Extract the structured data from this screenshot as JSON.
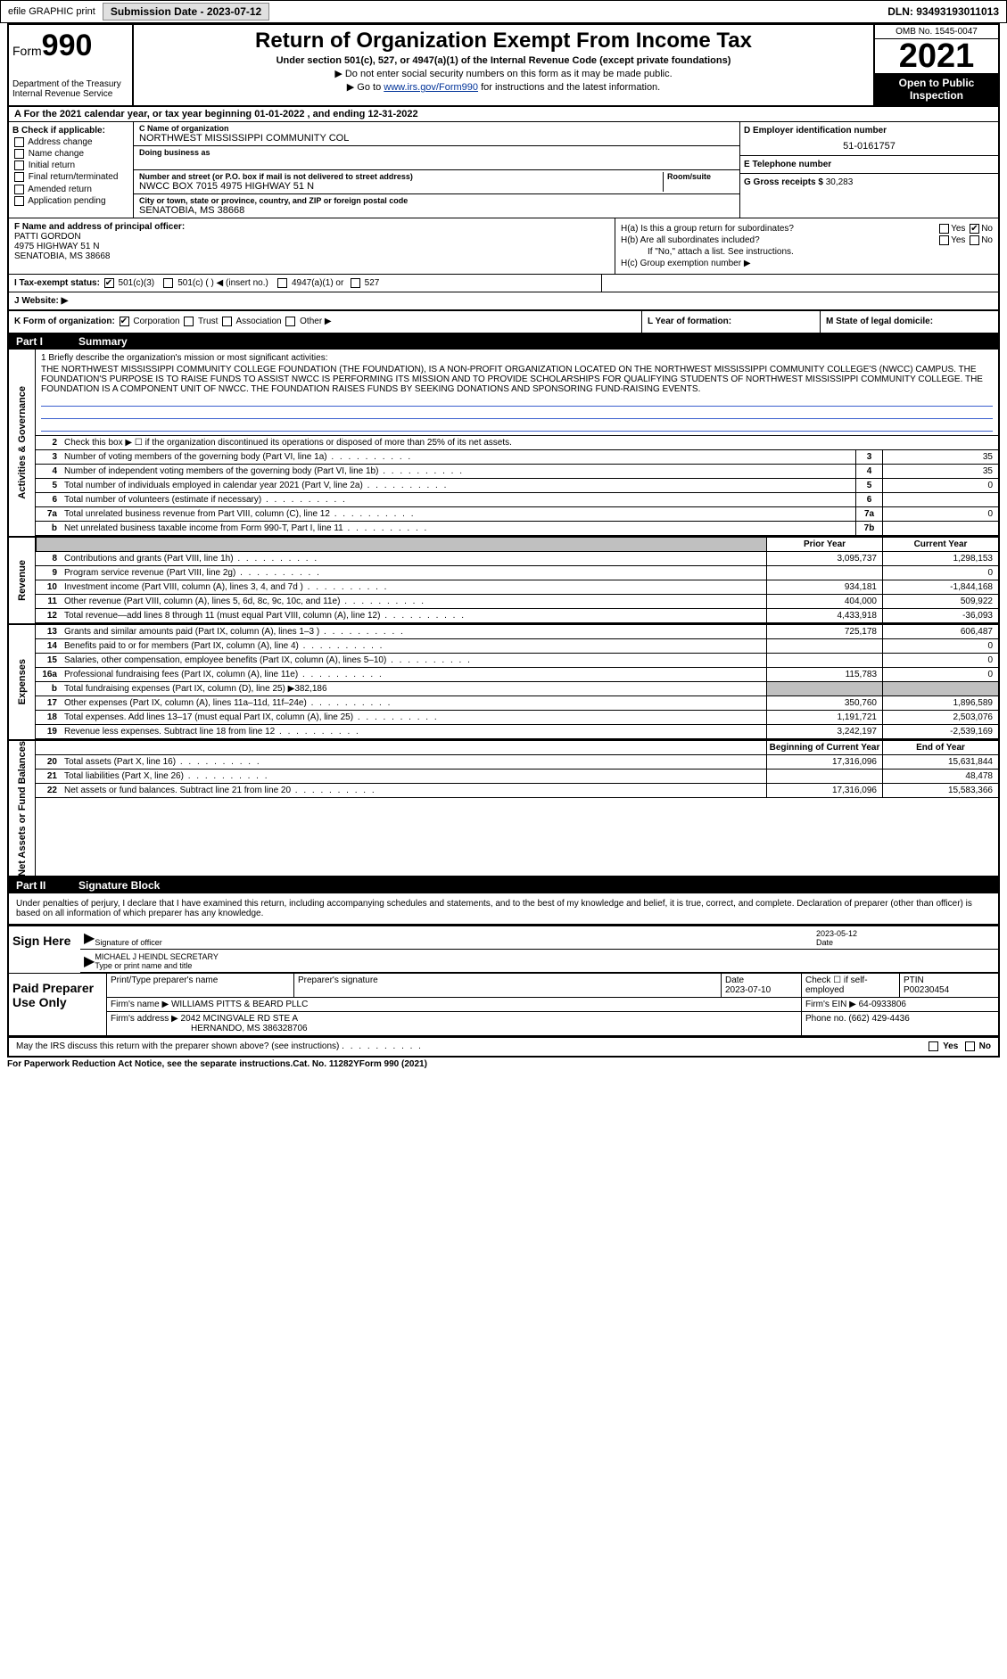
{
  "top": {
    "efile": "efile GRAPHIC print",
    "submission_label": "Submission Date - 2023-07-12",
    "dln": "DLN: 93493193011013"
  },
  "header": {
    "form_prefix": "Form",
    "form_number": "990",
    "dept": "Department of the Treasury Internal Revenue Service",
    "title": "Return of Organization Exempt From Income Tax",
    "sub1": "Under section 501(c), 527, or 4947(a)(1) of the Internal Revenue Code (except private foundations)",
    "sub2": "▶ Do not enter social security numbers on this form as it may be made public.",
    "sub3_pre": "▶ Go to ",
    "sub3_link": "www.irs.gov/Form990",
    "sub3_post": " for instructions and the latest information.",
    "omb": "OMB No. 1545-0047",
    "year": "2021",
    "open_public": "Open to Public Inspection"
  },
  "a_line": "A For the 2021 calendar year, or tax year beginning 01-01-2022   , and ending 12-31-2022",
  "b": {
    "title": "B Check if applicable:",
    "opts": [
      "Address change",
      "Name change",
      "Initial return",
      "Final return/terminated",
      "Amended return",
      "Application pending"
    ]
  },
  "c": {
    "name_lbl": "C Name of organization",
    "name": "NORTHWEST MISSISSIPPI COMMUNITY COL",
    "dba_lbl": "Doing business as",
    "addr_lbl": "Number and street (or P.O. box if mail is not delivered to street address)",
    "room_lbl": "Room/suite",
    "addr": "NWCC BOX 7015 4975 HIGHWAY 51 N",
    "city_lbl": "City or town, state or province, country, and ZIP or foreign postal code",
    "city": "SENATOBIA, MS  38668"
  },
  "d": {
    "lbl": "D Employer identification number",
    "val": "51-0161757"
  },
  "e": {
    "lbl": "E Telephone number"
  },
  "g": {
    "lbl": "G Gross receipts $",
    "val": "30,283"
  },
  "f": {
    "lbl": "F  Name and address of principal officer:",
    "name": "PATTI GORDON",
    "addr1": "4975 HIGHWAY 51 N",
    "addr2": "SENATOBIA, MS  38668"
  },
  "h": {
    "a": "H(a)  Is this a group return for subordinates?",
    "b": "H(b)  Are all subordinates included?",
    "b2": "If \"No,\" attach a list. See instructions.",
    "c": "H(c)  Group exemption number ▶",
    "yes": "Yes",
    "no": "No"
  },
  "i": {
    "lbl": "I   Tax-exempt status:",
    "o1": "501(c)(3)",
    "o2": "501(c) (  ) ◀ (insert no.)",
    "o3": "4947(a)(1) or",
    "o4": "527"
  },
  "j": {
    "lbl": "J   Website: ▶"
  },
  "k": {
    "lbl": "K Form of organization:",
    "o1": "Corporation",
    "o2": "Trust",
    "o3": "Association",
    "o4": "Other ▶"
  },
  "l": {
    "lbl": "L Year of formation:"
  },
  "m": {
    "lbl": "M State of legal domicile:"
  },
  "part1": {
    "num": "Part I",
    "title": "Summary"
  },
  "mission": {
    "q": "1   Briefly describe the organization's mission or most significant activities:",
    "txt": "THE NORTHWEST MISSISSIPPI COMMUNITY COLLEGE FOUNDATION (THE FOUNDATION), IS A NON-PROFIT ORGANIZATION LOCATED ON THE NORTHWEST MISSISSIPPI COMMUNITY COLLEGE'S (NWCC) CAMPUS. THE FOUNDATION'S PURPOSE IS TO RAISE FUNDS TO ASSIST NWCC IS PERFORMING ITS MISSION AND TO PROVIDE SCHOLARSHIPS FOR QUALIFYING STUDENTS OF NORTHWEST MISSISSIPPI COMMUNITY COLLEGE. THE FOUNDATION IS A COMPONENT UNIT OF NWCC. THE FOUNDATION RAISES FUNDS BY SEEKING DONATIONS AND SPONSORING FUND-RAISING EVENTS."
  },
  "vlabels": {
    "ag": "Activities & Governance",
    "rev": "Revenue",
    "exp": "Expenses",
    "nab": "Net Assets or Fund Balances"
  },
  "lines_ag": [
    {
      "n": "2",
      "d": "Check this box ▶ ☐ if the organization discontinued its operations or disposed of more than 25% of its net assets.",
      "full": true
    },
    {
      "n": "3",
      "d": "Number of voting members of the governing body (Part VI, line 1a)",
      "box": "3",
      "v": "35"
    },
    {
      "n": "4",
      "d": "Number of independent voting members of the governing body (Part VI, line 1b)",
      "box": "4",
      "v": "35"
    },
    {
      "n": "5",
      "d": "Total number of individuals employed in calendar year 2021 (Part V, line 2a)",
      "box": "5",
      "v": "0"
    },
    {
      "n": "6",
      "d": "Total number of volunteers (estimate if necessary)",
      "box": "6",
      "v": ""
    },
    {
      "n": "7a",
      "d": "Total unrelated business revenue from Part VIII, column (C), line 12",
      "box": "7a",
      "v": "0"
    },
    {
      "n": "b",
      "d": "Net unrelated business taxable income from Form 990-T, Part I, line 11",
      "box": "7b",
      "v": ""
    }
  ],
  "col_hdrs": {
    "prior": "Prior Year",
    "current": "Current Year"
  },
  "lines_rev": [
    {
      "n": "8",
      "d": "Contributions and grants (Part VIII, line 1h)",
      "p": "3,095,737",
      "c": "1,298,153"
    },
    {
      "n": "9",
      "d": "Program service revenue (Part VIII, line 2g)",
      "p": "",
      "c": "0"
    },
    {
      "n": "10",
      "d": "Investment income (Part VIII, column (A), lines 3, 4, and 7d )",
      "p": "934,181",
      "c": "-1,844,168"
    },
    {
      "n": "11",
      "d": "Other revenue (Part VIII, column (A), lines 5, 6d, 8c, 9c, 10c, and 11e)",
      "p": "404,000",
      "c": "509,922"
    },
    {
      "n": "12",
      "d": "Total revenue—add lines 8 through 11 (must equal Part VIII, column (A), line 12)",
      "p": "4,433,918",
      "c": "-36,093"
    }
  ],
  "lines_exp": [
    {
      "n": "13",
      "d": "Grants and similar amounts paid (Part IX, column (A), lines 1–3 )",
      "p": "725,178",
      "c": "606,487"
    },
    {
      "n": "14",
      "d": "Benefits paid to or for members (Part IX, column (A), line 4)",
      "p": "",
      "c": "0"
    },
    {
      "n": "15",
      "d": "Salaries, other compensation, employee benefits (Part IX, column (A), lines 5–10)",
      "p": "",
      "c": "0"
    },
    {
      "n": "16a",
      "d": "Professional fundraising fees (Part IX, column (A), line 11e)",
      "p": "115,783",
      "c": "0"
    },
    {
      "n": "b",
      "d": "Total fundraising expenses (Part IX, column (D), line 25) ▶382,186",
      "grey": true
    },
    {
      "n": "17",
      "d": "Other expenses (Part IX, column (A), lines 11a–11d, 11f–24e)",
      "p": "350,760",
      "c": "1,896,589"
    },
    {
      "n": "18",
      "d": "Total expenses. Add lines 13–17 (must equal Part IX, column (A), line 25)",
      "p": "1,191,721",
      "c": "2,503,076"
    },
    {
      "n": "19",
      "d": "Revenue less expenses. Subtract line 18 from line 12",
      "p": "3,242,197",
      "c": "-2,539,169"
    }
  ],
  "col_hdrs2": {
    "prior": "Beginning of Current Year",
    "current": "End of Year"
  },
  "lines_nab": [
    {
      "n": "20",
      "d": "Total assets (Part X, line 16)",
      "p": "17,316,096",
      "c": "15,631,844"
    },
    {
      "n": "21",
      "d": "Total liabilities (Part X, line 26)",
      "p": "",
      "c": "48,478"
    },
    {
      "n": "22",
      "d": "Net assets or fund balances. Subtract line 21 from line 20",
      "p": "17,316,096",
      "c": "15,583,366"
    }
  ],
  "part2": {
    "num": "Part II",
    "title": "Signature Block"
  },
  "sig_decl": "Under penalties of perjury, I declare that I have examined this return, including accompanying schedules and statements, and to the best of my knowledge and belief, it is true, correct, and complete. Declaration of preparer (other than officer) is based on all information of which preparer has any knowledge.",
  "sign": {
    "here": "Sign Here",
    "sig_lbl": "Signature of officer",
    "date_lbl": "Date",
    "date": "2023-05-12",
    "name": "MICHAEL J HEINDL  SECRETARY",
    "name_lbl": "Type or print name and title"
  },
  "prep": {
    "title": "Paid Preparer Use Only",
    "h1": "Print/Type preparer's name",
    "h2": "Preparer's signature",
    "h3": "Date",
    "h4": "Check ☐ if self-employed",
    "h5": "PTIN",
    "date": "2023-07-10",
    "ptin": "P00230454",
    "firm_lbl": "Firm's name    ▶",
    "firm": "WILLIAMS PITTS & BEARD PLLC",
    "ein_lbl": "Firm's EIN ▶",
    "ein": "64-0933806",
    "addr_lbl": "Firm's address ▶",
    "addr1": "2042 MCINGVALE RD STE A",
    "addr2": "HERNANDO, MS  386328706",
    "phone_lbl": "Phone no.",
    "phone": "(662) 429-4436"
  },
  "footer": {
    "discuss": "May the IRS discuss this return with the preparer shown above? (see instructions)",
    "yes": "Yes",
    "no": "No",
    "pra": "For Paperwork Reduction Act Notice, see the separate instructions.",
    "cat": "Cat. No. 11282Y",
    "form": "Form 990 (2021)"
  }
}
